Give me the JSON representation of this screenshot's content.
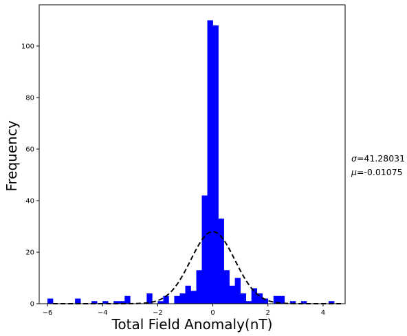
{
  "chart_data": {
    "type": "bar",
    "title": "",
    "xlabel": "Total Field Anomaly(nT)",
    "ylabel": "Frequency",
    "xlim": [
      -6.3,
      4.8
    ],
    "ylim": [
      0,
      116
    ],
    "xticks": [
      -6,
      -4,
      -2,
      0,
      2,
      4
    ],
    "yticks": [
      0,
      20,
      40,
      60,
      80,
      100
    ],
    "bin_width": 0.2,
    "bar_color": "#0000ff",
    "bins": [
      {
        "x0": -6.0,
        "count": 2
      },
      {
        "x0": -5.8,
        "count": 0
      },
      {
        "x0": -5.6,
        "count": 0
      },
      {
        "x0": -5.4,
        "count": 0
      },
      {
        "x0": -5.2,
        "count": 0
      },
      {
        "x0": -5.0,
        "count": 2
      },
      {
        "x0": -4.8,
        "count": 0
      },
      {
        "x0": -4.6,
        "count": 0
      },
      {
        "x0": -4.4,
        "count": 1
      },
      {
        "x0": -4.2,
        "count": 0
      },
      {
        "x0": -4.0,
        "count": 1
      },
      {
        "x0": -3.8,
        "count": 0
      },
      {
        "x0": -3.6,
        "count": 1
      },
      {
        "x0": -3.4,
        "count": 1
      },
      {
        "x0": -3.2,
        "count": 3
      },
      {
        "x0": -3.0,
        "count": 0
      },
      {
        "x0": -2.8,
        "count": 0
      },
      {
        "x0": -2.6,
        "count": 0
      },
      {
        "x0": -2.4,
        "count": 4
      },
      {
        "x0": -2.2,
        "count": 0
      },
      {
        "x0": -2.0,
        "count": 1
      },
      {
        "x0": -1.8,
        "count": 3
      },
      {
        "x0": -1.6,
        "count": 0
      },
      {
        "x0": -1.4,
        "count": 3
      },
      {
        "x0": -1.2,
        "count": 4
      },
      {
        "x0": -1.0,
        "count": 7
      },
      {
        "x0": -0.8,
        "count": 5
      },
      {
        "x0": -0.6,
        "count": 13
      },
      {
        "x0": -0.4,
        "count": 42
      },
      {
        "x0": -0.2,
        "count": 110
      },
      {
        "x0": 0.0,
        "count": 108
      },
      {
        "x0": 0.2,
        "count": 33
      },
      {
        "x0": 0.4,
        "count": 13
      },
      {
        "x0": 0.6,
        "count": 7
      },
      {
        "x0": 0.8,
        "count": 10
      },
      {
        "x0": 1.0,
        "count": 4
      },
      {
        "x0": 1.2,
        "count": 1
      },
      {
        "x0": 1.4,
        "count": 6
      },
      {
        "x0": 1.6,
        "count": 4
      },
      {
        "x0": 1.8,
        "count": 2
      },
      {
        "x0": 2.0,
        "count": 0
      },
      {
        "x0": 2.2,
        "count": 3
      },
      {
        "x0": 2.4,
        "count": 3
      },
      {
        "x0": 2.6,
        "count": 0
      },
      {
        "x0": 2.8,
        "count": 1
      },
      {
        "x0": 3.0,
        "count": 0
      },
      {
        "x0": 3.2,
        "count": 1
      },
      {
        "x0": 3.4,
        "count": 0
      },
      {
        "x0": 3.6,
        "count": 0
      },
      {
        "x0": 3.8,
        "count": 0
      },
      {
        "x0": 4.0,
        "count": 0
      },
      {
        "x0": 4.2,
        "count": 1
      }
    ],
    "fit_curve": {
      "style": "dashed",
      "color": "#000000",
      "peak": 28,
      "center": 0,
      "width_sd": 0.8
    },
    "annotation": {
      "sigma_symbol": "σ",
      "sigma_value": "=41.28031",
      "mu_symbol": "μ",
      "mu_value": "=-0.01075"
    },
    "grid": false,
    "legend": "none"
  }
}
